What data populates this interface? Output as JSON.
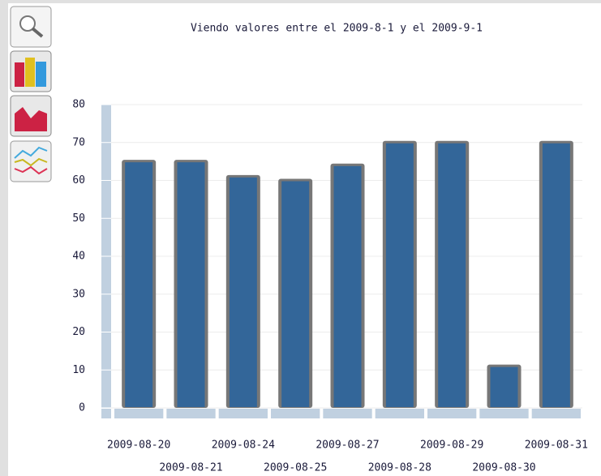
{
  "chart_data": {
    "type": "bar",
    "title": "Viendo valores entre el 2009-8-1 y el 2009-9-1",
    "categories": [
      "2009-08-20",
      "2009-08-21",
      "2009-08-24",
      "2009-08-25",
      "2009-08-27",
      "2009-08-28",
      "2009-08-29",
      "2009-08-30",
      "2009-08-31"
    ],
    "values": [
      65,
      65,
      61,
      60,
      64,
      70,
      70,
      11,
      70
    ],
    "color": "#336699",
    "ylim": [
      0,
      80
    ],
    "yticks": [
      0,
      10,
      20,
      30,
      40,
      50,
      60,
      70,
      80
    ],
    "grid": true
  }
}
